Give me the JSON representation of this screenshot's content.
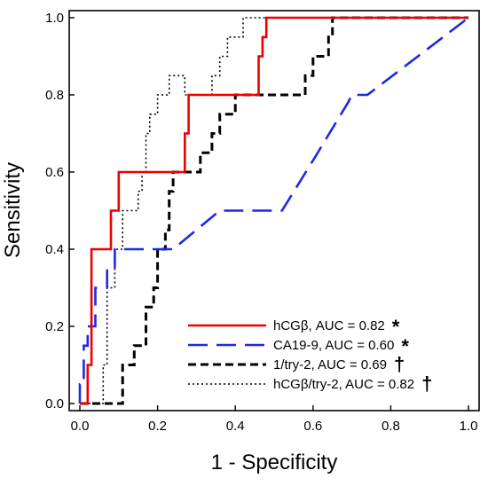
{
  "chart_data": {
    "type": "line",
    "title": "",
    "xlabel": "1 - Specificity",
    "ylabel": "Sensitivity",
    "xlim": [
      0.0,
      1.0
    ],
    "ylim": [
      0.0,
      1.0
    ],
    "xticks": [
      0.0,
      0.2,
      0.4,
      0.6,
      0.8,
      1.0
    ],
    "yticks": [
      0.0,
      0.2,
      0.4,
      0.6,
      0.8,
      1.0
    ],
    "xtick_labels": [
      "0.0",
      "0.2",
      "0.4",
      "0.6",
      "0.8",
      "1.0"
    ],
    "ytick_labels": [
      "0.0",
      "0.2",
      "0.4",
      "0.6",
      "0.8",
      "1.0"
    ],
    "grid": false,
    "legend_position": "bottom-right",
    "series": [
      {
        "name": "hCGβ, AUC = 0.82",
        "mark": "*",
        "color": "#ee0000",
        "style": "solid",
        "x": [
          0.0,
          0.02,
          0.02,
          0.03,
          0.03,
          0.08,
          0.08,
          0.1,
          0.1,
          0.12,
          0.12,
          0.27,
          0.27,
          0.28,
          0.28,
          0.46,
          0.46,
          0.47,
          0.47,
          0.48,
          0.48,
          1.0
        ],
        "y": [
          0.0,
          0.0,
          0.1,
          0.1,
          0.4,
          0.4,
          0.5,
          0.5,
          0.6,
          0.6,
          0.6,
          0.6,
          0.7,
          0.7,
          0.8,
          0.8,
          0.9,
          0.9,
          0.95,
          0.95,
          1.0,
          1.0
        ]
      },
      {
        "name": "CA19-9, AUC = 0.60",
        "mark": "*",
        "color": "#1e28e6",
        "style": "long-dash",
        "x": [
          0.0,
          0.0,
          0.01,
          0.01,
          0.02,
          0.02,
          0.04,
          0.04,
          0.07,
          0.07,
          0.09,
          0.09,
          0.24,
          0.36,
          0.52,
          0.6,
          0.69,
          0.7,
          0.74,
          1.0
        ],
        "y": [
          0.0,
          0.05,
          0.05,
          0.15,
          0.15,
          0.2,
          0.2,
          0.3,
          0.3,
          0.35,
          0.35,
          0.4,
          0.4,
          0.5,
          0.5,
          0.63,
          0.78,
          0.8,
          0.8,
          1.0
        ]
      },
      {
        "name": "1/try-2, AUC = 0.69",
        "mark": "†",
        "color": "#000000",
        "style": "dash",
        "x": [
          0.0,
          0.11,
          0.11,
          0.14,
          0.14,
          0.17,
          0.17,
          0.19,
          0.19,
          0.2,
          0.2,
          0.22,
          0.22,
          0.23,
          0.23,
          0.24,
          0.24,
          0.31,
          0.31,
          0.34,
          0.34,
          0.36,
          0.36,
          0.4,
          0.4,
          0.58,
          0.58,
          0.6,
          0.6,
          0.64,
          0.64,
          0.65,
          0.65,
          1.0
        ],
        "y": [
          0.0,
          0.0,
          0.1,
          0.1,
          0.15,
          0.15,
          0.25,
          0.25,
          0.3,
          0.3,
          0.4,
          0.4,
          0.45,
          0.45,
          0.55,
          0.55,
          0.6,
          0.6,
          0.65,
          0.65,
          0.7,
          0.7,
          0.75,
          0.75,
          0.8,
          0.8,
          0.85,
          0.85,
          0.9,
          0.9,
          0.95,
          0.95,
          1.0,
          1.0
        ]
      },
      {
        "name": "hCGβ/try-2, AUC = 0.82",
        "mark": "†",
        "color": "#000000",
        "style": "dotted",
        "x": [
          0.0,
          0.06,
          0.06,
          0.07,
          0.07,
          0.09,
          0.09,
          0.11,
          0.11,
          0.15,
          0.15,
          0.16,
          0.16,
          0.17,
          0.17,
          0.18,
          0.18,
          0.2,
          0.2,
          0.23,
          0.23,
          0.27,
          0.27,
          0.34,
          0.34,
          0.36,
          0.36,
          0.38,
          0.38,
          0.42,
          0.42,
          0.44,
          0.44,
          1.0
        ],
        "y": [
          0.0,
          0.0,
          0.1,
          0.1,
          0.3,
          0.3,
          0.4,
          0.4,
          0.5,
          0.5,
          0.55,
          0.55,
          0.6,
          0.6,
          0.7,
          0.7,
          0.75,
          0.75,
          0.8,
          0.8,
          0.85,
          0.85,
          0.8,
          0.8,
          0.85,
          0.85,
          0.9,
          0.9,
          0.95,
          0.95,
          1.0,
          1.0,
          1.0,
          1.0
        ]
      }
    ]
  }
}
